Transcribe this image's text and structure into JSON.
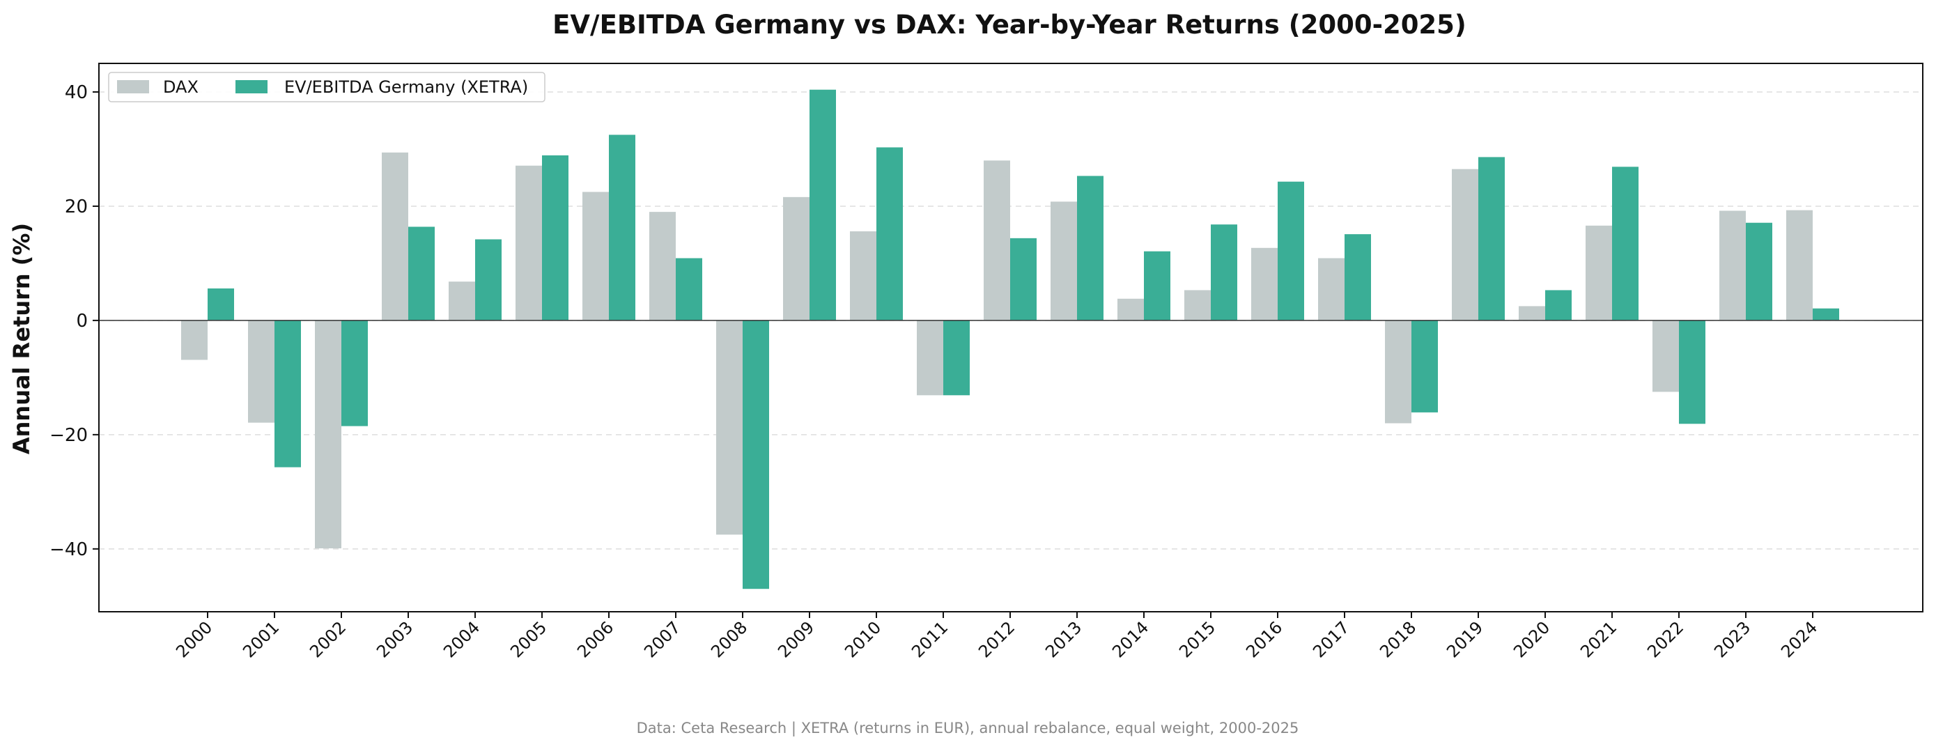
{
  "chart_data": {
    "type": "bar",
    "title": "EV/EBITDA Germany vs DAX: Year-by-Year Returns (2000-2025)",
    "xlabel": "",
    "ylabel": "Annual Return (%)",
    "ylim": [
      -51,
      45
    ],
    "yticks": [
      -40,
      -20,
      0,
      20,
      40
    ],
    "grid": true,
    "legend_position": "top-left",
    "categories": [
      "2000",
      "2001",
      "2002",
      "2003",
      "2004",
      "2005",
      "2006",
      "2007",
      "2008",
      "2009",
      "2010",
      "2011",
      "2012",
      "2013",
      "2014",
      "2015",
      "2016",
      "2017",
      "2018",
      "2019",
      "2020",
      "2021",
      "2022",
      "2023",
      "2024"
    ],
    "series": [
      {
        "name": "DAX",
        "color": "#c2cbcb",
        "values": [
          -6.9,
          -17.9,
          -39.9,
          29.4,
          6.8,
          27.1,
          22.5,
          19.0,
          -37.5,
          21.6,
          15.6,
          -13.1,
          28.0,
          20.8,
          3.8,
          5.3,
          12.7,
          10.9,
          -18.0,
          26.5,
          2.5,
          16.6,
          -12.5,
          19.2,
          19.3
        ]
      },
      {
        "name": "EV/EBITDA Germany (XETRA)",
        "color": "#3aae96",
        "values": [
          5.6,
          -25.7,
          -18.5,
          16.4,
          14.2,
          28.9,
          32.5,
          10.9,
          -47.0,
          40.4,
          30.3,
          -13.1,
          14.4,
          25.3,
          12.1,
          16.8,
          24.3,
          15.1,
          -16.1,
          28.6,
          5.3,
          26.9,
          -18.1,
          17.1,
          2.1
        ]
      }
    ],
    "footnote": "Data: Ceta Research | XETRA (returns in EUR), annual rebalance, equal weight, 2000-2025"
  }
}
